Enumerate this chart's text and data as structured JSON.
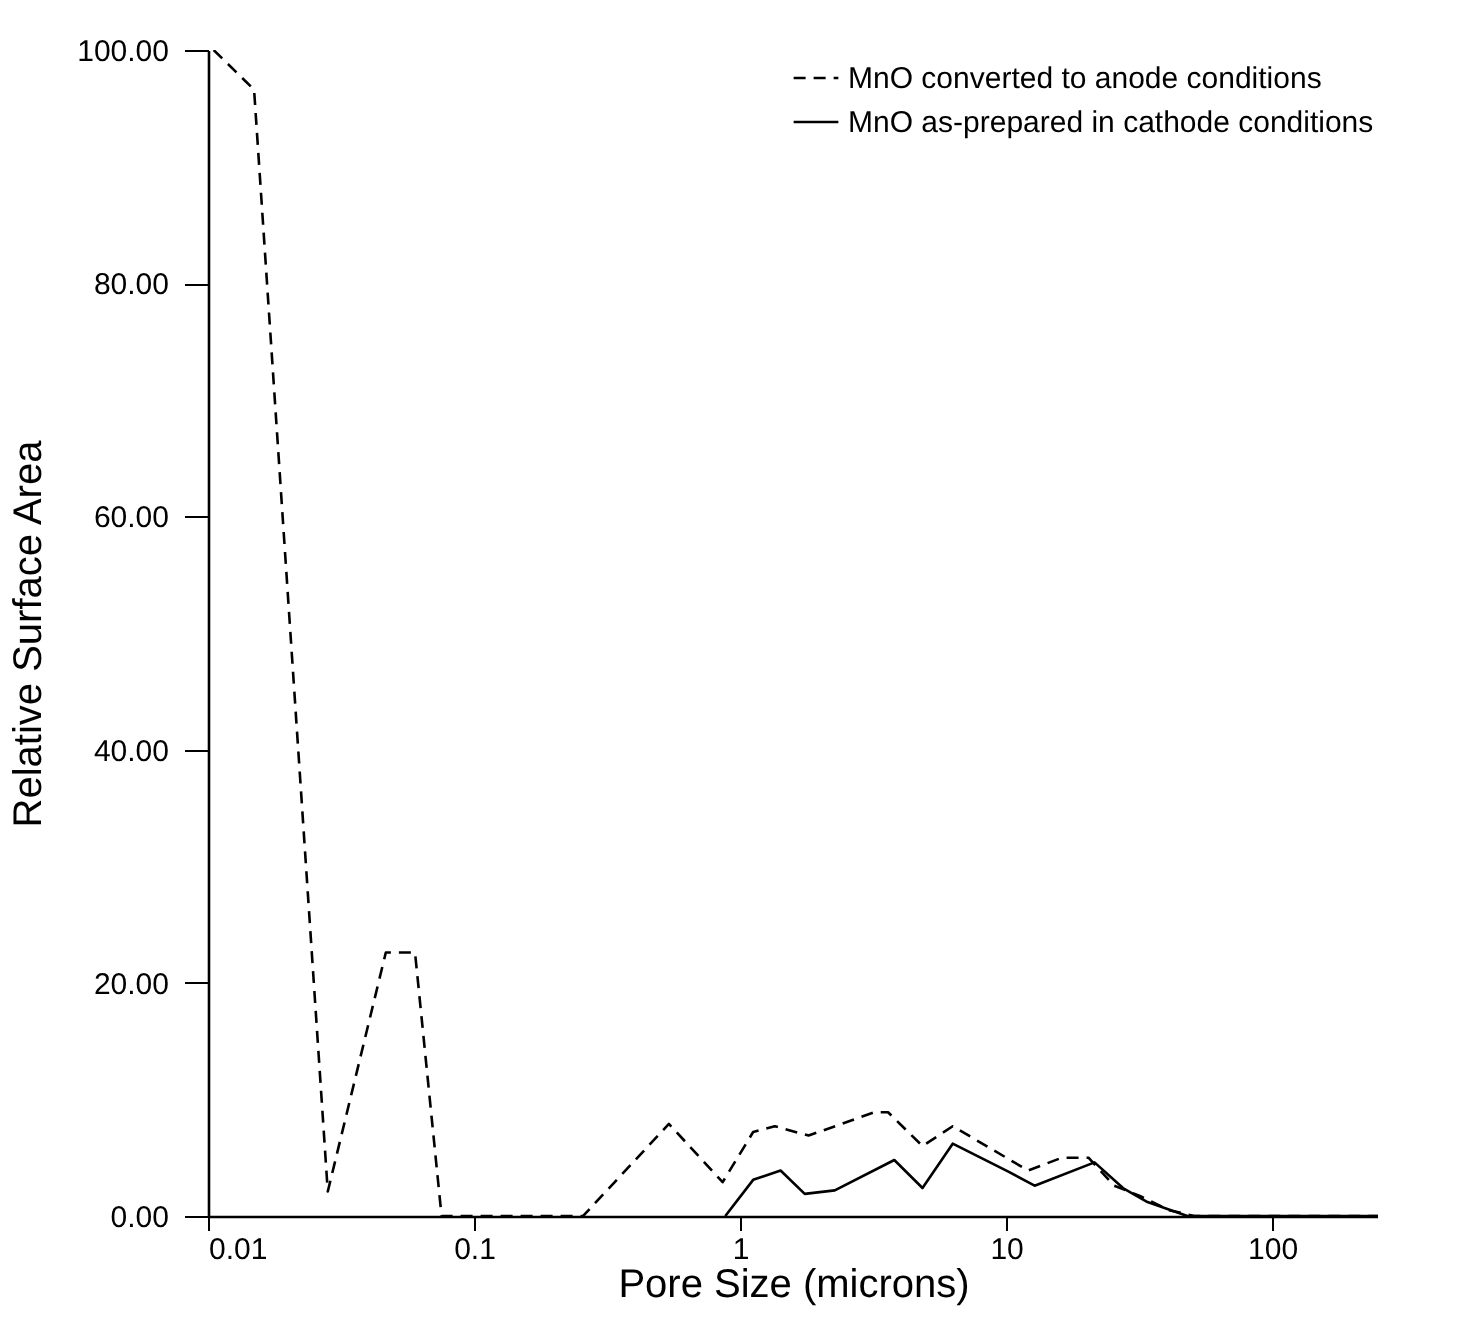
{
  "chart_data": {
    "type": "line",
    "xlabel": "Pore Size (microns)",
    "ylabel": "Relative Surface Area",
    "log": "x",
    "xlim": [
      0.01,
      250
    ],
    "xticks": [
      0.01,
      0.1,
      1,
      10,
      100
    ],
    "ylim": [
      0,
      100
    ],
    "yticks": [
      {
        "value": 0,
        "label": "0.00"
      },
      {
        "value": 20,
        "label": "20.00"
      },
      {
        "value": 40,
        "label": "40.00"
      },
      {
        "value": 60,
        "label": "60.00"
      },
      {
        "value": 80,
        "label": "80.00"
      },
      {
        "value": 100,
        "label": "100.00"
      }
    ],
    "grid": false,
    "legend": "top right",
    "marker": "none",
    "series": [
      {
        "name": "MnO converted to anode conditions",
        "color": "#000000",
        "line_style": "dashed",
        "x": [
          0.0105,
          0.0149,
          0.0282,
          0.0466,
          0.06,
          0.0755,
          0.257,
          0.54,
          0.86,
          1.12,
          1.35,
          1.81,
          3.2,
          3.6,
          4.85,
          6.3,
          12.1,
          16.2,
          20.4,
          25.5,
          32,
          41,
          51,
          250
        ],
        "values": [
          100,
          96.6,
          2.1,
          22.6,
          22.6,
          0,
          0,
          7.9,
          2.9,
          7.2,
          7.7,
          6.9,
          8.9,
          8.9,
          6.0,
          7.7,
          3.9,
          5.0,
          5.0,
          2.6,
          1.7,
          0.5,
          0,
          0
        ]
      },
      {
        "name": "MnO as-prepared in cathode conditions",
        "color": "#000000",
        "line_style": "solid",
        "x": [
          0.88,
          1.12,
          1.42,
          1.75,
          2.27,
          3.8,
          4.85,
          6.3,
          10.2,
          12.8,
          21.5,
          27.5,
          34,
          48,
          250
        ],
        "values": [
          0,
          3.1,
          3.9,
          1.9,
          2.2,
          4.8,
          2.4,
          6.2,
          3.8,
          2.6,
          4.6,
          2.4,
          1.2,
          0,
          0
        ]
      }
    ]
  }
}
